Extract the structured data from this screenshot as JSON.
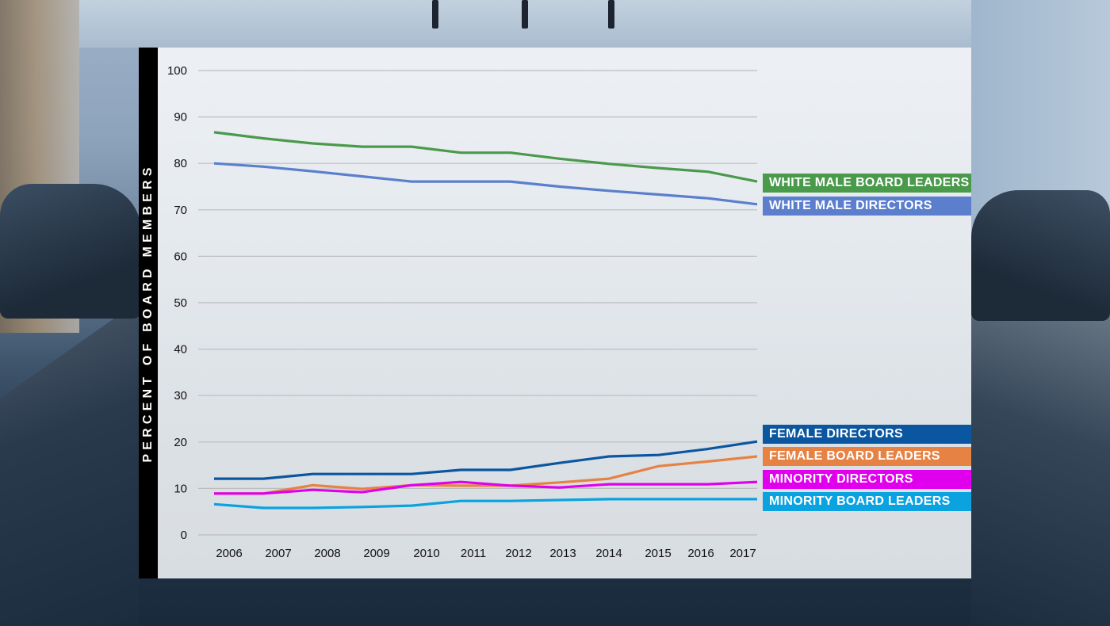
{
  "chart_data": {
    "type": "line",
    "title": "",
    "xlabel": "",
    "ylabel": "PERCENT OF BOARD MEMBERS",
    "ylim": [
      0,
      100
    ],
    "yticks": [
      0,
      10,
      20,
      30,
      40,
      50,
      60,
      70,
      80,
      90,
      100
    ],
    "grid": true,
    "legend_position": "right",
    "x": [
      2006,
      2007,
      2008,
      2009,
      2010,
      2011,
      2012,
      2013,
      2014,
      2015,
      2016,
      2017
    ],
    "xtick_labels": [
      "2006",
      "2007",
      "2008",
      "2009",
      "2010",
      "2011",
      "2012",
      "2013",
      "2014",
      "2015",
      "2016",
      "2017"
    ],
    "series": [
      {
        "name": "WHITE MALE BOARD LEADERS",
        "color": "#4a9a4c",
        "values": [
          86.7,
          85.4,
          84.3,
          83.6,
          83.6,
          82.3,
          82.3,
          81.0,
          79.9,
          79.0,
          78.2,
          76.1
        ]
      },
      {
        "name": "WHITE MALE DIRECTORS",
        "color": "#5b7fcc",
        "values": [
          80.0,
          79.3,
          78.3,
          77.2,
          76.1,
          76.1,
          76.1,
          75.0,
          74.1,
          73.3,
          72.5,
          71.2
        ]
      },
      {
        "name": "FEMALE DIRECTORS",
        "color": "#0b56a0",
        "values": [
          12.1,
          12.1,
          13.1,
          13.1,
          13.1,
          14.0,
          14.0,
          15.5,
          16.9,
          17.2,
          18.5,
          20.1
        ]
      },
      {
        "name": "FEMALE BOARD LEADERS",
        "color": "#e58244",
        "values": [
          8.9,
          8.9,
          10.7,
          9.9,
          10.7,
          10.6,
          10.6,
          11.3,
          12.1,
          14.8,
          15.8,
          16.9
        ]
      },
      {
        "name": "MINORITY DIRECTORS",
        "color": "#e000ee",
        "values": [
          8.9,
          8.9,
          9.7,
          9.2,
          10.7,
          11.4,
          10.6,
          10.2,
          10.9,
          10.9,
          10.9,
          11.4
        ]
      },
      {
        "name": "MINORITY BOARD LEADERS",
        "color": "#0aa2df",
        "values": [
          6.6,
          5.8,
          5.8,
          6.0,
          6.3,
          7.3,
          7.3,
          7.5,
          7.7,
          7.7,
          7.7,
          7.7
        ]
      }
    ]
  }
}
